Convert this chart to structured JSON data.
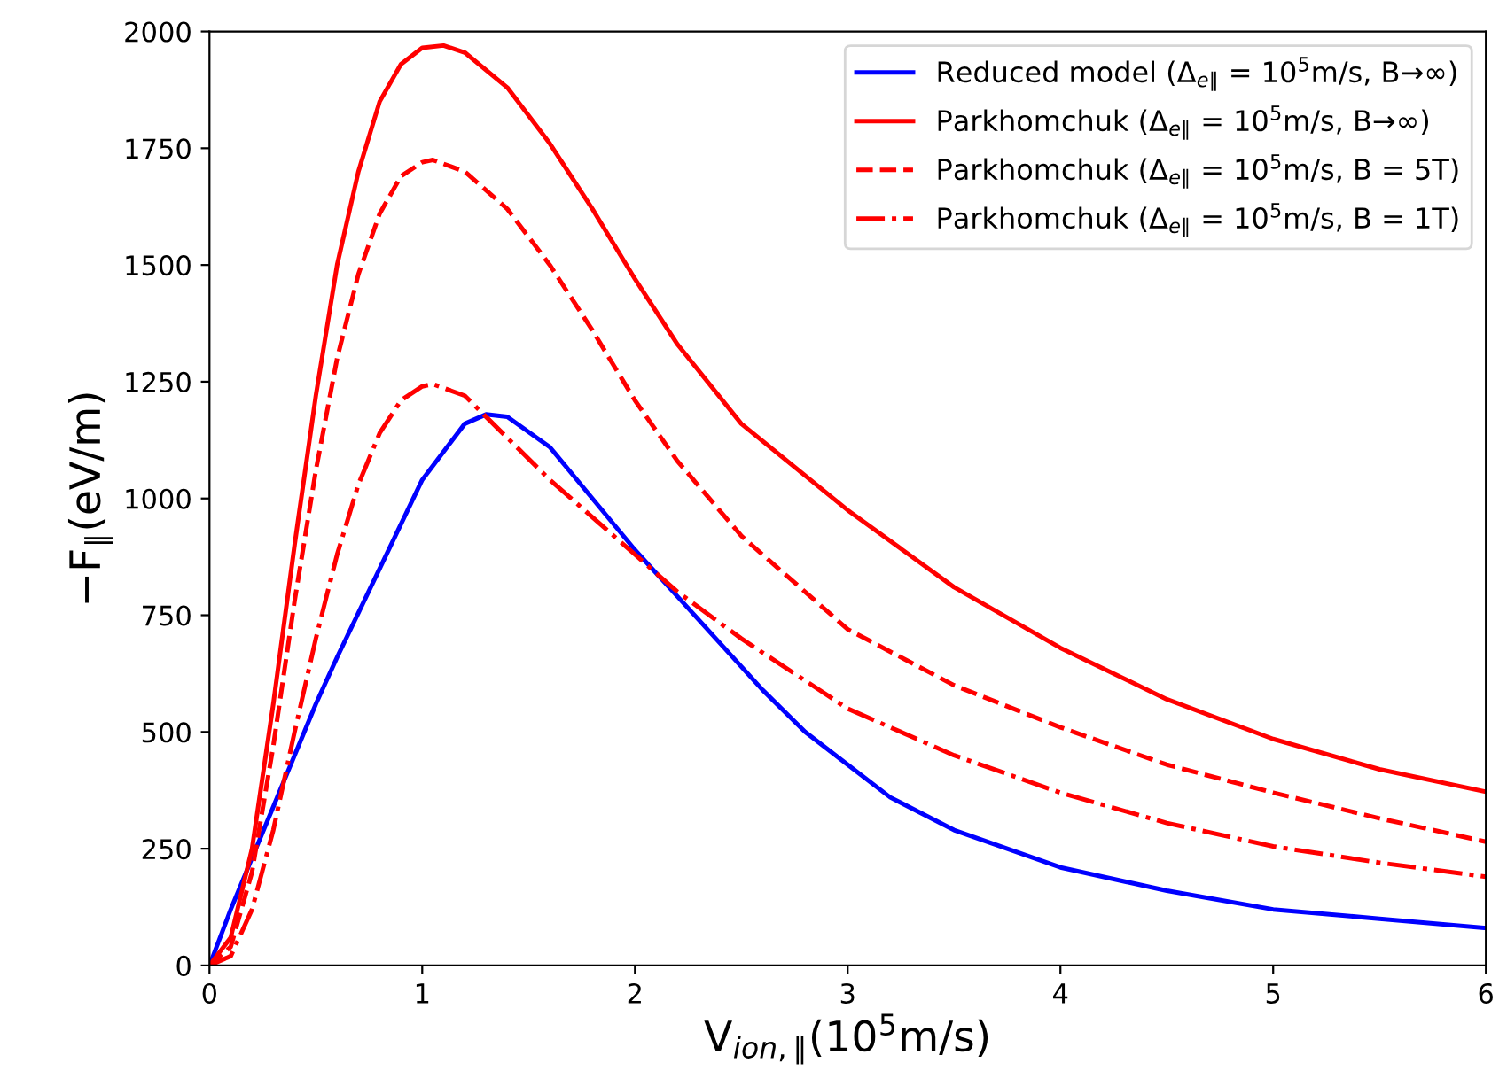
{
  "chart_data": {
    "type": "line",
    "xlabel": "V$_{ion,∥}$(10$^{5}$m/s)",
    "ylabel": "−F$_{∥}$(eV/m)",
    "xlim": [
      0,
      6
    ],
    "xticks": [
      0,
      1,
      2,
      3,
      4,
      5,
      6
    ],
    "ylim": [
      0,
      2000
    ],
    "yticks": [
      0,
      250,
      500,
      750,
      1000,
      1250,
      1500,
      1750,
      2000
    ],
    "grid": false,
    "legend": "top right",
    "marker": "none",
    "series": [
      {
        "name": "Reduced model (Δ$_{e∥}$ = 10$^{5}$m/s, B→∞)",
        "color": "#0000ff",
        "line_style": "solid",
        "x": [
          0,
          0.1,
          0.2,
          0.3,
          0.4,
          0.5,
          0.6,
          0.8,
          1.0,
          1.2,
          1.3,
          1.4,
          1.6,
          1.8,
          2.0,
          2.2,
          2.4,
          2.6,
          2.8,
          3.0,
          3.2,
          3.5,
          4.0,
          4.5,
          5.0,
          5.5,
          6.0
        ],
        "values": [
          0,
          120,
          230,
          340,
          450,
          560,
          660,
          850,
          1040,
          1160,
          1180,
          1175,
          1110,
          1000,
          890,
          790,
          690,
          590,
          500,
          430,
          360,
          290,
          210,
          160,
          120,
          100,
          80
        ]
      },
      {
        "name": "Parkhomchuk (Δ$_{e∥}$ = 10$^{5}$m/s, B→∞)",
        "color": "#ff0000",
        "line_style": "solid",
        "x": [
          0,
          0.1,
          0.2,
          0.3,
          0.4,
          0.5,
          0.6,
          0.7,
          0.8,
          0.9,
          1.0,
          1.1,
          1.2,
          1.4,
          1.6,
          1.8,
          2.0,
          2.2,
          2.5,
          3.0,
          3.5,
          4.0,
          4.5,
          5.0,
          5.5,
          6.0
        ],
        "values": [
          0,
          60,
          250,
          560,
          900,
          1220,
          1500,
          1700,
          1850,
          1930,
          1965,
          1970,
          1955,
          1880,
          1760,
          1620,
          1470,
          1330,
          1160,
          975,
          810,
          680,
          570,
          485,
          420,
          372
        ]
      },
      {
        "name": "Parkhomchuk (Δ$_{e∥}$ = 10$^{5}$m/s, B = 5T)",
        "color": "#ff0000",
        "line_style": "dashed",
        "x": [
          0,
          0.1,
          0.2,
          0.3,
          0.4,
          0.5,
          0.6,
          0.7,
          0.8,
          0.9,
          1.0,
          1.05,
          1.2,
          1.4,
          1.6,
          1.8,
          2.0,
          2.2,
          2.5,
          3.0,
          3.5,
          4.0,
          4.5,
          5.0,
          5.5,
          6.0
        ],
        "values": [
          0,
          40,
          200,
          470,
          780,
          1060,
          1300,
          1480,
          1610,
          1690,
          1720,
          1725,
          1700,
          1620,
          1500,
          1360,
          1210,
          1080,
          920,
          720,
          600,
          510,
          430,
          370,
          315,
          265
        ]
      },
      {
        "name": "Parkhomchuk (Δ$_{e∥}$ = 10$^{5}$m/s, B = 1T)",
        "color": "#ff0000",
        "line_style": "dashdot",
        "x": [
          0,
          0.1,
          0.2,
          0.3,
          0.4,
          0.5,
          0.6,
          0.7,
          0.8,
          0.9,
          1.0,
          1.05,
          1.2,
          1.4,
          1.6,
          1.8,
          2.0,
          2.2,
          2.5,
          3.0,
          3.5,
          4.0,
          4.5,
          5.0,
          5.5,
          6.0
        ],
        "values": [
          0,
          20,
          120,
          290,
          500,
          700,
          880,
          1030,
          1140,
          1210,
          1240,
          1245,
          1220,
          1130,
          1040,
          960,
          880,
          800,
          700,
          550,
          450,
          370,
          305,
          255,
          220,
          190
        ]
      }
    ]
  }
}
